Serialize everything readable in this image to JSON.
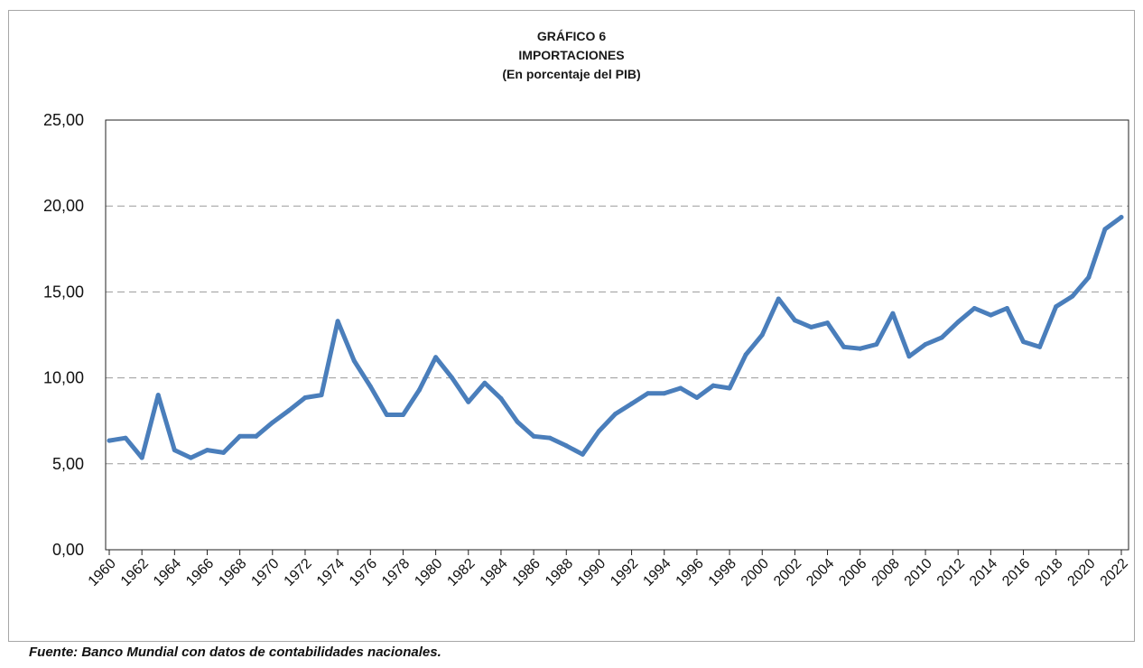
{
  "chart_data": {
    "type": "line",
    "title": "GRÁFICO 6",
    "subtitle": "IMPORTACIONES",
    "subtitle2": "(En porcentaje del PIB)",
    "source": "Fuente: Banco Mundial con datos de contabilidades nacionales.",
    "xlabel": "",
    "ylabel": "",
    "ylim": [
      0,
      25
    ],
    "yticks": [
      "0,00",
      "5,00",
      "10,00",
      "15,00",
      "20,00",
      "25,00"
    ],
    "grid": "horizontal dashed",
    "legend": "none",
    "series_color": "#4a7ebb",
    "x": [
      1960,
      1961,
      1962,
      1963,
      1964,
      1965,
      1966,
      1967,
      1968,
      1969,
      1970,
      1971,
      1972,
      1973,
      1974,
      1975,
      1976,
      1977,
      1978,
      1979,
      1980,
      1981,
      1982,
      1983,
      1984,
      1985,
      1986,
      1987,
      1988,
      1989,
      1990,
      1991,
      1992,
      1993,
      1994,
      1995,
      1996,
      1997,
      1998,
      1999,
      2000,
      2001,
      2002,
      2003,
      2004,
      2005,
      2006,
      2007,
      2008,
      2009,
      2010,
      2011,
      2012,
      2013,
      2014,
      2015,
      2016,
      2017,
      2018,
      2019,
      2020,
      2021,
      2022
    ],
    "xticks": [
      "1960",
      "1962",
      "1964",
      "1966",
      "1968",
      "1970",
      "1972",
      "1974",
      "1976",
      "1978",
      "1980",
      "1982",
      "1984",
      "1986",
      "1988",
      "1990",
      "1992",
      "1994",
      "1996",
      "1998",
      "2000",
      "2002",
      "2004",
      "2006",
      "2008",
      "2010",
      "2012",
      "2014",
      "2016",
      "2018",
      "2020",
      "2022"
    ],
    "series": [
      {
        "values": [
          6.35,
          6.5,
          5.35,
          9.0,
          5.8,
          5.35,
          5.8,
          5.65,
          6.6,
          6.6,
          7.4,
          8.1,
          8.85,
          9.0,
          13.3,
          11.0,
          9.5,
          7.85,
          7.85,
          9.3,
          11.2,
          10.0,
          8.6,
          9.7,
          8.8,
          7.45,
          6.6,
          6.5,
          6.05,
          5.55,
          6.9,
          7.9,
          8.5,
          9.1,
          9.1,
          9.4,
          8.85,
          9.55,
          9.4,
          11.35,
          12.5,
          14.6,
          13.35,
          12.95,
          13.2,
          11.8,
          11.7,
          11.95,
          13.75,
          11.25,
          11.95,
          12.35,
          13.25,
          14.05,
          13.65,
          14.05,
          12.1,
          11.8,
          14.15,
          14.75,
          15.85,
          18.65,
          19.35
        ]
      }
    ]
  }
}
